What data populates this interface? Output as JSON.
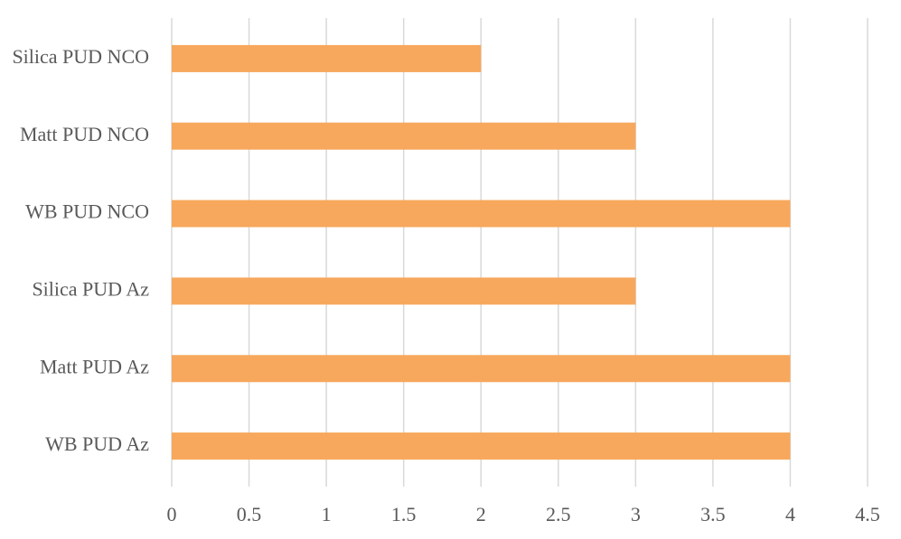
{
  "chart_data": {
    "type": "hbar",
    "categories": [
      "Silica PUD NCO",
      "Matt PUD NCO",
      "WB PUD NCO",
      "Silica PUD Az",
      "Matt PUD Az",
      "WB PUD Az"
    ],
    "values": [
      2,
      3,
      4,
      3,
      4,
      4
    ],
    "color": "#f7a85c",
    "xlim": [
      0,
      4.5
    ],
    "xticks": [
      0,
      0.5,
      1,
      1.5,
      2,
      2.5,
      3,
      3.5,
      4,
      4.5
    ],
    "grid": true
  }
}
